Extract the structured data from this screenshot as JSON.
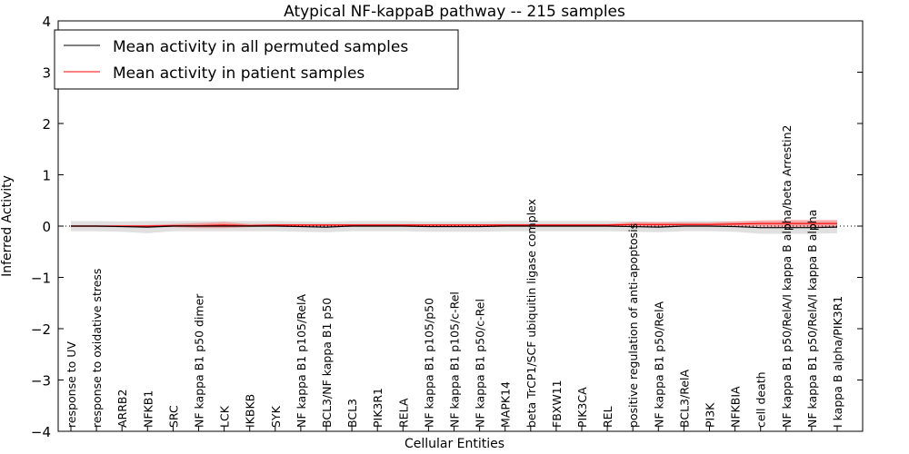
{
  "chart_data": {
    "type": "line",
    "title": "Atypical NF-kappaB pathway -- 215 samples",
    "xlabel": "Cellular Entities",
    "ylabel": "Inferred Activity",
    "ylim": [
      -4,
      4
    ],
    "yticks": [
      "−4",
      "−3",
      "−2",
      "−1",
      "0",
      "1",
      "2",
      "3",
      "4"
    ],
    "categories": [
      "response to UV",
      "response to oxidative stress",
      "ARRB2",
      "NFKB1",
      "SRC",
      "NF kappa B1 p50 dimer",
      "LCK",
      "IKBKB",
      "SYK",
      "NF kappa B1 p105/RelA",
      "BCL3/NF kappa B1 p50",
      "BCL3",
      "PIK3R1",
      "RELA",
      "NF kappa B1 p105/p50",
      "NF kappa B1 p105/c-Rel",
      "NF kappa B1 p50/c-Rel",
      "MAPK14",
      "beta TrCP1/SCF ubiquitin ligase complex",
      "FBXW11",
      "PIK3CA",
      "REL",
      "positive regulation of anti-apoptosis",
      "NF kappa B1 p50/RelA",
      "BCL3/RelA",
      "PI3K",
      "NFKBIA",
      "cell death",
      "NF kappa B1 p50/RelA/I kappa B alpha/beta Arrestin2",
      "NF kappa B1 p50/RelA/I kappa B alpha",
      "I kappa B alpha/PIK3R1"
    ],
    "series": [
      {
        "name": "Mean activity in all permuted samples",
        "color": "#000000",
        "values": [
          0,
          0,
          -0.01,
          -0.02,
          0,
          0,
          0,
          0,
          0,
          -0.01,
          -0.02,
          0,
          0,
          0,
          -0.01,
          -0.01,
          -0.01,
          0,
          0,
          0,
          0,
          0,
          -0.01,
          -0.02,
          0,
          0,
          -0.01,
          -0.03,
          -0.03,
          -0.03,
          -0.02
        ],
        "band": [
          0.1,
          0.1,
          0.1,
          0.12,
          0.1,
          0.1,
          0.1,
          0.1,
          0.1,
          0.1,
          0.1,
          0.1,
          0.1,
          0.1,
          0.1,
          0.1,
          0.1,
          0.1,
          0.1,
          0.1,
          0.1,
          0.1,
          0.1,
          0.1,
          0.1,
          0.1,
          0.1,
          0.12,
          0.12,
          0.12,
          0.12
        ]
      },
      {
        "name": "Mean activity in patient samples",
        "color": "#ff0000",
        "values": [
          0,
          0,
          0,
          0,
          0.01,
          0.01,
          0.02,
          0.01,
          0.02,
          0.02,
          0.02,
          0.02,
          0.02,
          0.02,
          0.02,
          0.02,
          0.02,
          0.02,
          0.02,
          0.02,
          0.02,
          0.02,
          0.03,
          0.03,
          0.03,
          0.03,
          0.04,
          0.05,
          0.05,
          0.05,
          0.05
        ],
        "band": [
          0.02,
          0.02,
          0.02,
          0.02,
          0.03,
          0.05,
          0.06,
          0.03,
          0.02,
          0.02,
          0.02,
          0.02,
          0.02,
          0.02,
          0.02,
          0.02,
          0.02,
          0.02,
          0.02,
          0.02,
          0.02,
          0.02,
          0.05,
          0.05,
          0.04,
          0.04,
          0.05,
          0.06,
          0.07,
          0.07,
          0.07
        ]
      }
    ],
    "legend": "top-left",
    "grid": false
  }
}
